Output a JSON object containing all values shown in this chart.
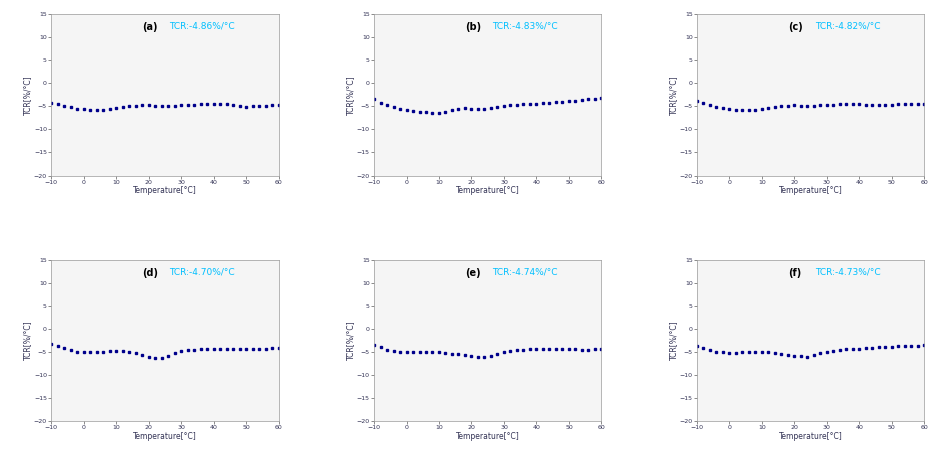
{
  "panels": [
    {
      "label": "(a)",
      "tcr": "TCR:-4.86%/°C",
      "x": [
        -10,
        -8,
        -6,
        -4,
        -2,
        0,
        2,
        4,
        6,
        8,
        10,
        12,
        14,
        16,
        18,
        20,
        22,
        24,
        26,
        28,
        30,
        32,
        34,
        36,
        38,
        40,
        42,
        44,
        46,
        48,
        50,
        52,
        54,
        56,
        58,
        60
      ],
      "y": [
        -4.2,
        -4.5,
        -5.0,
        -5.2,
        -5.5,
        -5.6,
        -5.8,
        -5.9,
        -5.7,
        -5.5,
        -5.4,
        -5.2,
        -5.0,
        -4.9,
        -4.8,
        -4.8,
        -4.9,
        -5.0,
        -5.0,
        -4.9,
        -4.8,
        -4.7,
        -4.7,
        -4.6,
        -4.6,
        -4.5,
        -4.5,
        -4.6,
        -4.8,
        -5.0,
        -5.1,
        -5.0,
        -5.0,
        -4.9,
        -4.8,
        -4.8
      ]
    },
    {
      "label": "(b)",
      "tcr": "TCR:-4.83%/°C",
      "x": [
        -10,
        -8,
        -6,
        -4,
        -2,
        0,
        2,
        4,
        6,
        8,
        10,
        12,
        14,
        16,
        18,
        20,
        22,
        24,
        26,
        28,
        30,
        32,
        34,
        36,
        38,
        40,
        42,
        44,
        46,
        48,
        50,
        52,
        54,
        56,
        58,
        60
      ],
      "y": [
        -3.5,
        -4.2,
        -4.8,
        -5.2,
        -5.6,
        -5.8,
        -6.0,
        -6.2,
        -6.3,
        -6.5,
        -6.4,
        -6.2,
        -5.8,
        -5.6,
        -5.4,
        -5.5,
        -5.6,
        -5.5,
        -5.4,
        -5.2,
        -5.0,
        -4.8,
        -4.7,
        -4.6,
        -4.5,
        -4.4,
        -4.3,
        -4.2,
        -4.1,
        -4.0,
        -3.9,
        -3.8,
        -3.7,
        -3.5,
        -3.4,
        -3.2
      ]
    },
    {
      "label": "(c)",
      "tcr": "TCR:-4.82%/°C",
      "x": [
        -10,
        -8,
        -6,
        -4,
        -2,
        0,
        2,
        4,
        6,
        8,
        10,
        12,
        14,
        16,
        18,
        20,
        22,
        24,
        26,
        28,
        30,
        32,
        34,
        36,
        38,
        40,
        42,
        44,
        46,
        48,
        50,
        52,
        54,
        56,
        58,
        60
      ],
      "y": [
        -3.8,
        -4.2,
        -4.8,
        -5.1,
        -5.4,
        -5.6,
        -5.8,
        -5.9,
        -5.8,
        -5.7,
        -5.5,
        -5.3,
        -5.1,
        -5.0,
        -4.9,
        -4.8,
        -4.9,
        -5.0,
        -4.9,
        -4.8,
        -4.7,
        -4.7,
        -4.6,
        -4.6,
        -4.6,
        -4.6,
        -4.7,
        -4.8,
        -4.8,
        -4.8,
        -4.7,
        -4.6,
        -4.6,
        -4.5,
        -4.5,
        -4.5
      ]
    },
    {
      "label": "(d)",
      "tcr": "TCR:-4.70%/°C",
      "x": [
        -10,
        -8,
        -6,
        -4,
        -2,
        0,
        2,
        4,
        6,
        8,
        10,
        12,
        14,
        16,
        18,
        20,
        22,
        24,
        26,
        28,
        30,
        32,
        34,
        36,
        38,
        40,
        42,
        44,
        46,
        48,
        50,
        52,
        54,
        56,
        58,
        60
      ],
      "y": [
        -3.2,
        -3.8,
        -4.2,
        -4.6,
        -4.9,
        -5.0,
        -5.0,
        -5.0,
        -4.9,
        -4.8,
        -4.7,
        -4.7,
        -5.0,
        -5.3,
        -5.6,
        -6.0,
        -6.2,
        -6.3,
        -5.8,
        -5.2,
        -4.8,
        -4.6,
        -4.5,
        -4.4,
        -4.3,
        -4.3,
        -4.3,
        -4.3,
        -4.3,
        -4.3,
        -4.3,
        -4.3,
        -4.3,
        -4.3,
        -4.2,
        -4.2
      ]
    },
    {
      "label": "(e)",
      "tcr": "TCR:-4.74%/°C",
      "x": [
        -10,
        -8,
        -6,
        -4,
        -2,
        0,
        2,
        4,
        6,
        8,
        10,
        12,
        14,
        16,
        18,
        20,
        22,
        24,
        26,
        28,
        30,
        32,
        34,
        36,
        38,
        40,
        42,
        44,
        46,
        48,
        50,
        52,
        54,
        56,
        58,
        60
      ],
      "y": [
        -3.5,
        -4.0,
        -4.5,
        -4.8,
        -5.0,
        -5.1,
        -5.1,
        -5.0,
        -5.0,
        -5.0,
        -5.1,
        -5.2,
        -5.4,
        -5.5,
        -5.7,
        -5.9,
        -6.0,
        -6.1,
        -5.8,
        -5.5,
        -5.1,
        -4.8,
        -4.6,
        -4.5,
        -4.4,
        -4.4,
        -4.4,
        -4.3,
        -4.3,
        -4.3,
        -4.4,
        -4.4,
        -4.5,
        -4.5,
        -4.4,
        -4.4
      ]
    },
    {
      "label": "(f)",
      "tcr": "TCR:-4.73%/°C",
      "x": [
        -10,
        -8,
        -6,
        -4,
        -2,
        0,
        2,
        4,
        6,
        8,
        10,
        12,
        14,
        16,
        18,
        20,
        22,
        24,
        26,
        28,
        30,
        32,
        34,
        36,
        38,
        40,
        42,
        44,
        46,
        48,
        50,
        52,
        54,
        56,
        58,
        60
      ],
      "y": [
        -3.8,
        -4.2,
        -4.6,
        -4.9,
        -5.1,
        -5.2,
        -5.2,
        -5.1,
        -5.0,
        -5.0,
        -5.0,
        -5.1,
        -5.2,
        -5.4,
        -5.6,
        -5.8,
        -5.9,
        -6.0,
        -5.7,
        -5.3,
        -4.9,
        -4.7,
        -4.5,
        -4.4,
        -4.3,
        -4.3,
        -4.2,
        -4.2,
        -4.0,
        -3.9,
        -3.9,
        -3.8,
        -3.7,
        -3.7,
        -3.6,
        -3.5
      ]
    }
  ],
  "dot_color": "#00008B",
  "label_color": "#000000",
  "tcr_color": "#00BFFF",
  "ylabel": "TCR[%/°C]",
  "xlabel": "Temperature[°C]",
  "ylim": [
    -20,
    15
  ],
  "xlim": [
    -10,
    60
  ],
  "xticks": [
    -10,
    0,
    10,
    20,
    30,
    40,
    50,
    60
  ],
  "yticks": [
    -20,
    -15,
    -10,
    -5,
    0,
    5,
    10,
    15
  ],
  "marker": "s",
  "markersize": 1.8,
  "label_fontsize": 7,
  "tcr_fontsize": 6.5,
  "axis_fontsize": 5.5,
  "tick_fontsize": 4.5,
  "spine_color": "#999999",
  "bg_color": "#f5f5f5"
}
